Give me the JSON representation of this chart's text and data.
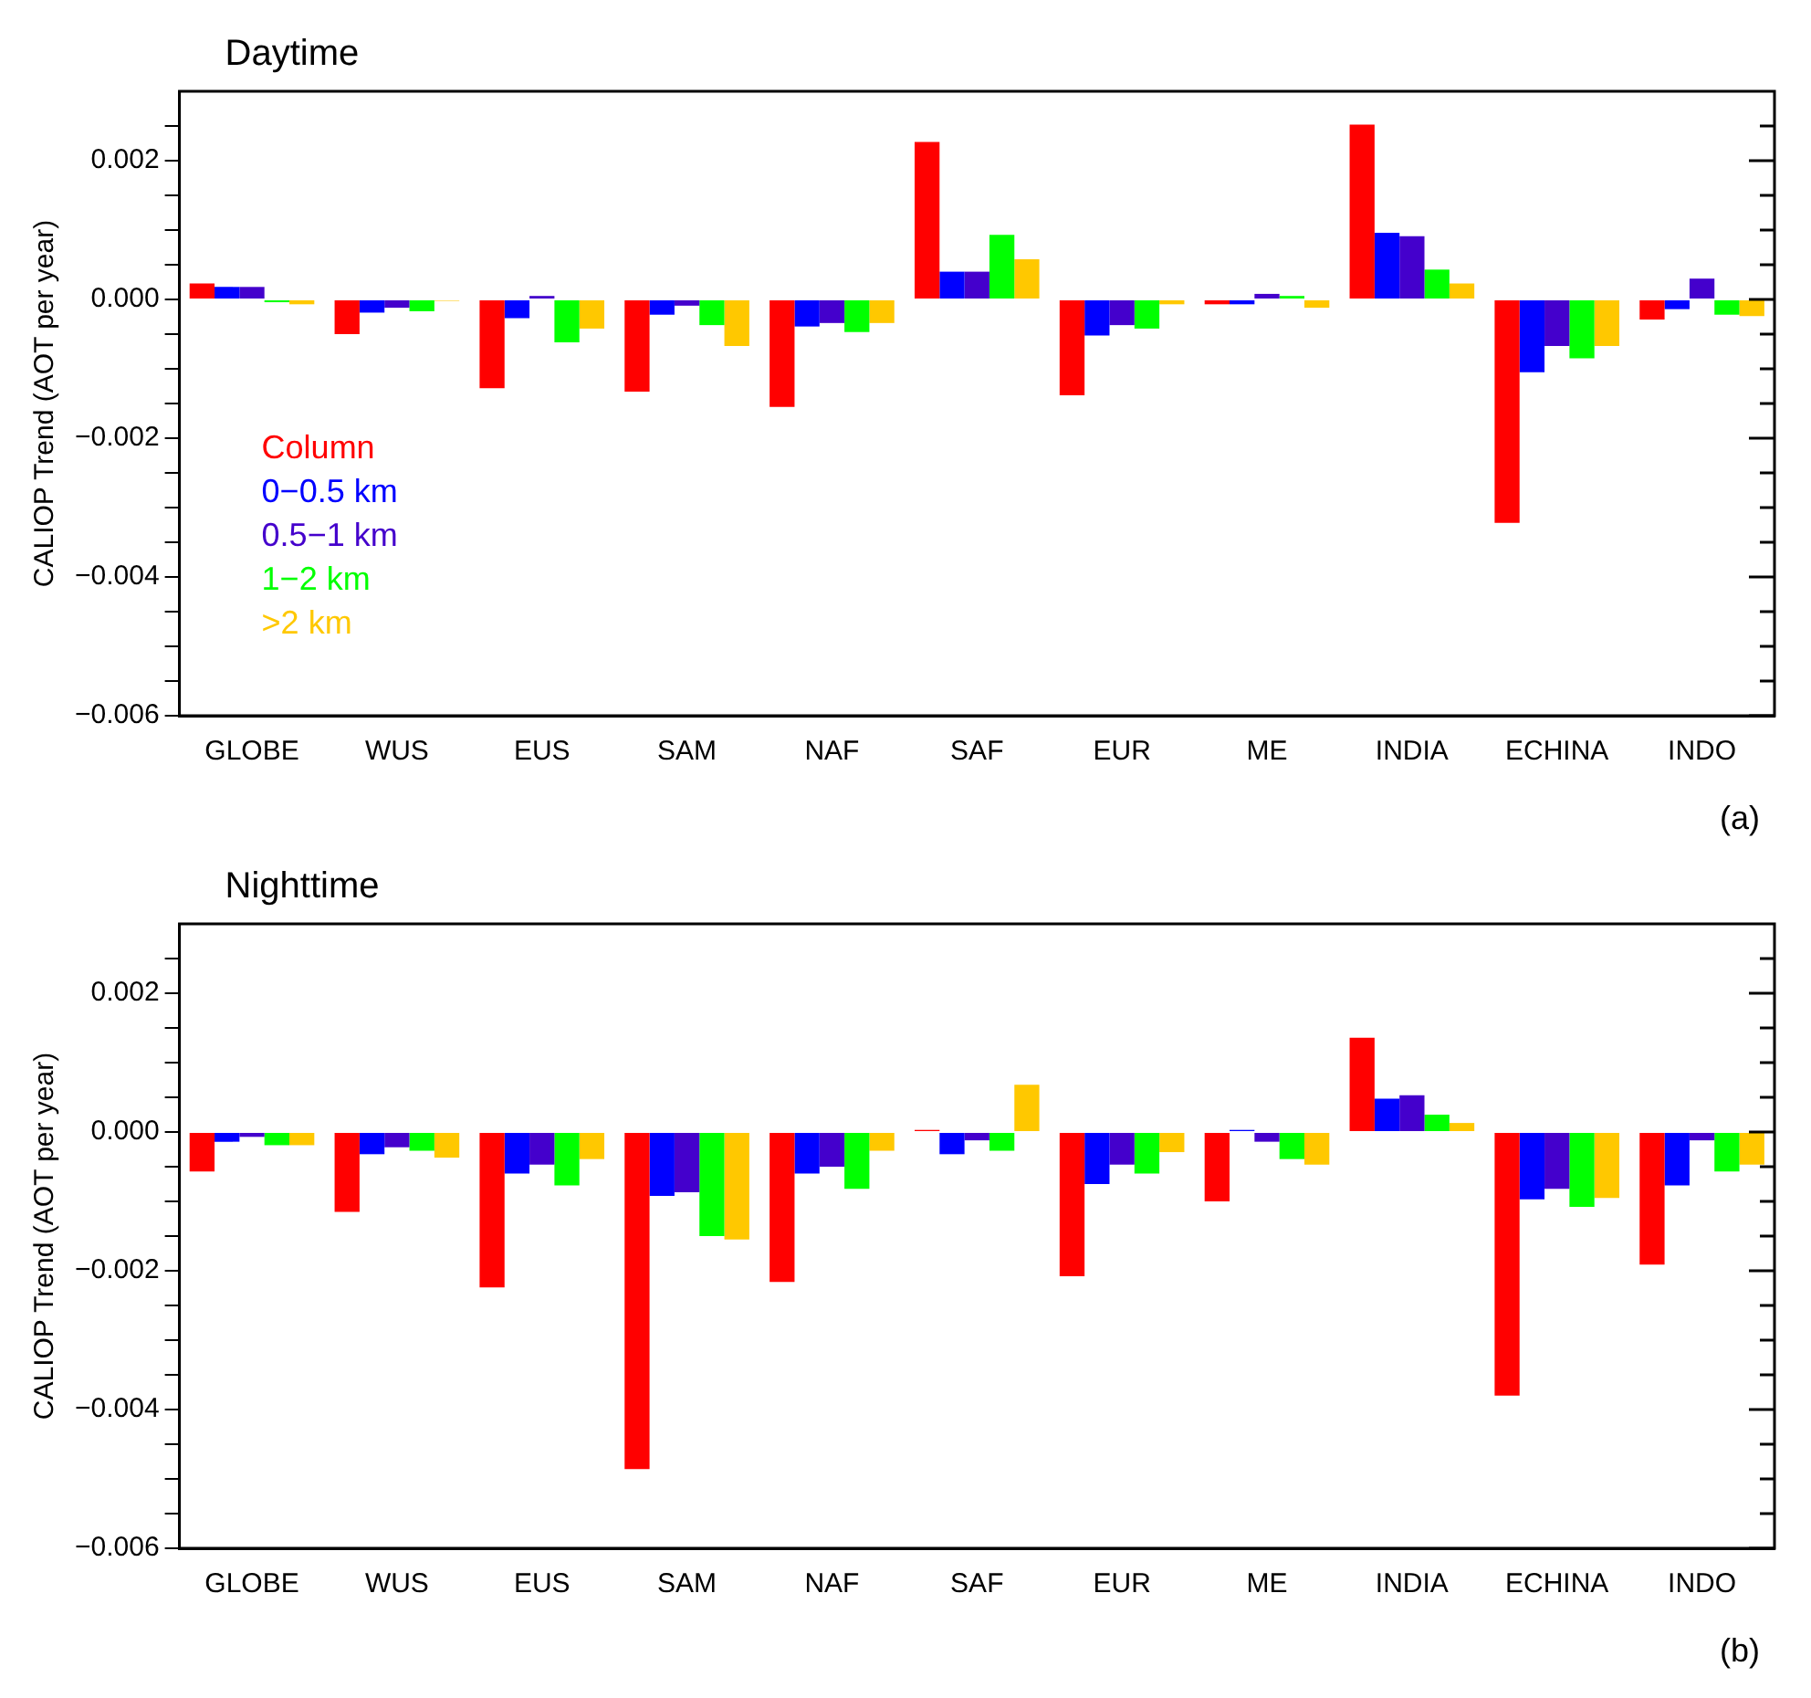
{
  "chart_data": [
    {
      "type": "bar",
      "title": "Daytime",
      "ylabel": "CALIOP Trend (AOT per year)",
      "annotations": [
        "(a)"
      ],
      "categories": [
        "GLOBE",
        "WUS",
        "EUS",
        "SAM",
        "NAF",
        "SAF",
        "EUR",
        "ME",
        "INDIA",
        "ECHINA",
        "INDO"
      ],
      "series": [
        {
          "name": "Column",
          "color": "#ff0000",
          "values": [
            0.00023,
            -0.0005,
            -0.00128,
            -0.00133,
            -0.00155,
            0.00227,
            -0.00138,
            -7e-05,
            0.00252,
            -0.00322,
            -0.00029
          ]
        },
        {
          "name": "0−0.5 km",
          "color": "#0000ff",
          "values": [
            0.00018,
            -0.00019,
            -0.00027,
            -0.00022,
            -0.00039,
            0.0004,
            -0.00052,
            -7e-05,
            0.00096,
            -0.00105,
            -0.00014
          ]
        },
        {
          "name": "0.5−1 km",
          "color": "#4400cc",
          "values": [
            0.00018,
            -0.00012,
            5e-05,
            -9e-05,
            -0.00034,
            0.0004,
            -0.00037,
            8e-05,
            0.00091,
            -0.00067,
            0.0003
          ]
        },
        {
          "name": "1−2 km",
          "color": "#00ff00",
          "values": [
            -4e-05,
            -0.00017,
            -0.00062,
            -0.00037,
            -0.00047,
            0.00093,
            -0.00042,
            5e-05,
            0.00043,
            -0.00085,
            -0.00022
          ]
        },
        {
          "name": ">2 km",
          "color": "#ffc800",
          "values": [
            -7e-05,
            -2e-05,
            -0.00042,
            -0.00067,
            -0.00034,
            0.00058,
            -7e-05,
            -0.00012,
            0.00023,
            -0.00067,
            -0.00024
          ]
        }
      ],
      "ylim": [
        -0.006,
        0.003
      ],
      "yticks": [
        {
          "value": -0.006,
          "label": "−0.006"
        },
        {
          "value": -0.0055,
          "label": null
        },
        {
          "value": -0.005,
          "label": null
        },
        {
          "value": -0.0045,
          "label": null
        },
        {
          "value": -0.004,
          "label": "−0.004"
        },
        {
          "value": -0.0035,
          "label": null
        },
        {
          "value": -0.003,
          "label": null
        },
        {
          "value": -0.0025,
          "label": null
        },
        {
          "value": -0.002,
          "label": "−0.002"
        },
        {
          "value": -0.0015,
          "label": null
        },
        {
          "value": -0.001,
          "label": null
        },
        {
          "value": -0.0005,
          "label": null
        },
        {
          "value": 0,
          "label": "0.000"
        },
        {
          "value": 0.0005,
          "label": null
        },
        {
          "value": 0.001,
          "label": null
        },
        {
          "value": 0.0015,
          "label": null
        },
        {
          "value": 0.002,
          "label": "0.002"
        },
        {
          "value": 0.0025,
          "label": null
        }
      ],
      "grid": false,
      "legend": "bottom left"
    },
    {
      "type": "bar",
      "title": "Nighttime",
      "ylabel": "CALIOP Trend (AOT per year)",
      "annotations": [
        "(b)"
      ],
      "categories": [
        "GLOBE",
        "WUS",
        "EUS",
        "SAM",
        "NAF",
        "SAF",
        "EUR",
        "ME",
        "INDIA",
        "ECHINA",
        "INDO"
      ],
      "series": [
        {
          "color": "#ff0000",
          "values": [
            -0.00057,
            -0.00115,
            -0.00224,
            -0.00486,
            -0.00216,
            3e-05,
            -0.00208,
            -0.001,
            0.00136,
            -0.0038,
            -0.00191
          ]
        },
        {
          "color": "#0000ff",
          "values": [
            -0.00014,
            -0.00032,
            -0.0006,
            -0.00092,
            -0.0006,
            -0.00032,
            -0.00075,
            3e-05,
            0.00048,
            -0.00097,
            -0.00077
          ]
        },
        {
          "color": "#4400cc",
          "values": [
            -7e-05,
            -0.00022,
            -0.00047,
            -0.00087,
            -0.0005,
            -0.00012,
            -0.00047,
            -0.00014,
            0.00053,
            -0.00082,
            -0.00012
          ]
        },
        {
          "color": "#00ff00",
          "values": [
            -0.00019,
            -0.00027,
            -0.00077,
            -0.0015,
            -0.00082,
            -0.00027,
            -0.0006,
            -0.00039,
            0.00025,
            -0.00108,
            -0.00057
          ]
        },
        {
          "color": "#ffc800",
          "values": [
            -0.00019,
            -0.00037,
            -0.00039,
            -0.00155,
            -0.00027,
            0.00068,
            -0.00029,
            -0.00047,
            0.00013,
            -0.00095,
            -0.00047
          ]
        }
      ],
      "ylim": [
        -0.006,
        0.003
      ],
      "yticks": [
        {
          "value": -0.006,
          "label": "−0.006"
        },
        {
          "value": -0.0055,
          "label": null
        },
        {
          "value": -0.005,
          "label": null
        },
        {
          "value": -0.0045,
          "label": null
        },
        {
          "value": -0.004,
          "label": "−0.004"
        },
        {
          "value": -0.0035,
          "label": null
        },
        {
          "value": -0.003,
          "label": null
        },
        {
          "value": -0.0025,
          "label": null
        },
        {
          "value": -0.002,
          "label": "−0.002"
        },
        {
          "value": -0.0015,
          "label": null
        },
        {
          "value": -0.001,
          "label": null
        },
        {
          "value": -0.0005,
          "label": null
        },
        {
          "value": 0,
          "label": "0.000"
        },
        {
          "value": 0.0005,
          "label": null
        },
        {
          "value": 0.001,
          "label": null
        },
        {
          "value": 0.0015,
          "label": null
        },
        {
          "value": 0.002,
          "label": "0.002"
        },
        {
          "value": 0.0025,
          "label": null
        }
      ],
      "grid": false
    }
  ]
}
